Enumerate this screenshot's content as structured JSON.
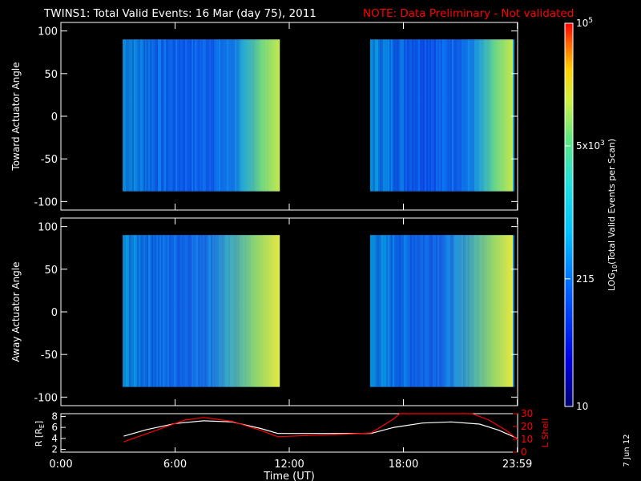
{
  "title": "TWINS1: Total Valid Events: 16 Mar (day  75), 2011",
  "note": "NOTE: Data Preliminary - Not validated",
  "stamp": "7 Jun 12",
  "colors": {
    "background": "#000000",
    "axes": "#ffffff",
    "note": "#ff0000",
    "r_line": "#ffffff",
    "lshell_line": "#ff0000"
  },
  "chart_data": [
    {
      "type": "heatmap",
      "ylabel": "Toward Actuator Angle",
      "ylim": [
        -110,
        110
      ],
      "y_ticks": [
        "100",
        "50",
        "0",
        "-50",
        "-100"
      ],
      "x_ticks": [
        "0:00",
        "6:00",
        "12:00",
        "18:00",
        "23:59"
      ],
      "xlim_hours": [
        0,
        24
      ],
      "data_blocks": [
        {
          "start": "3:15",
          "end": "11:30",
          "angle_range": [
            -88,
            90
          ]
        },
        {
          "start": "16:15",
          "end": "23:45",
          "angle_range": [
            -88,
            90
          ]
        }
      ]
    },
    {
      "type": "heatmap",
      "ylabel": "Away Actuator Angle",
      "ylim": [
        -110,
        110
      ],
      "y_ticks": [
        "100",
        "50",
        "0",
        "-50",
        "-100"
      ],
      "x_ticks": [
        "0:00",
        "6:00",
        "12:00",
        "18:00",
        "23:59"
      ],
      "xlim_hours": [
        0,
        24
      ],
      "data_blocks": [
        {
          "start": "3:15",
          "end": "11:30",
          "angle_range": [
            -88,
            90
          ]
        },
        {
          "start": "16:15",
          "end": "23:45",
          "angle_range": [
            -88,
            90
          ]
        }
      ]
    },
    {
      "type": "line",
      "xlabel": "Time (UT)",
      "x_ticks": [
        "0:00",
        "6:00",
        "12:00",
        "18:00",
        "23:59"
      ],
      "left_axis": {
        "label": "R [R",
        "label_sub": "E",
        "label_end": "]",
        "ticks": [
          "8",
          "6",
          "4",
          "2"
        ],
        "range": [
          1.5,
          8.5
        ]
      },
      "right_axis": {
        "label": "L Shell",
        "ticks": [
          "30",
          "20",
          "10",
          "0"
        ],
        "range": [
          0,
          30
        ]
      },
      "series": [
        {
          "axis": "left",
          "x": [
            3.3,
            4.5,
            6,
            7.5,
            9,
            10.5,
            11.4,
            13,
            15,
            16.3,
            17.5,
            19,
            20.5,
            22,
            23,
            24
          ],
          "y": [
            4.4,
            5.6,
            6.7,
            7.2,
            7.0,
            5.8,
            4.9,
            4.9,
            4.9,
            4.9,
            6.0,
            6.8,
            7.0,
            6.6,
            5.5,
            4.0
          ]
        },
        {
          "axis": "right",
          "x": [
            3.3,
            5,
            6.5,
            7.5,
            9,
            10.5,
            11.4,
            13,
            15,
            16.3,
            17.5,
            17.8,
            21.6,
            22.5,
            23.5,
            24
          ],
          "y": [
            8,
            17,
            25,
            27,
            24,
            17,
            12,
            13,
            14,
            15,
            26,
            30,
            30,
            25,
            16,
            10
          ]
        }
      ]
    }
  ],
  "colorbar": {
    "label_pre": "LOG",
    "label_sub": "10",
    "label_post": "(Total Valid  Events per Scan)",
    "ticks": [
      {
        "label": "10",
        "frac": 0.0
      },
      {
        "label": "215",
        "frac": 0.333
      },
      {
        "label": "5x10",
        "sup": "3",
        "frac": 0.68
      },
      {
        "label": "10",
        "sup": "5",
        "frac": 1.0
      }
    ]
  }
}
